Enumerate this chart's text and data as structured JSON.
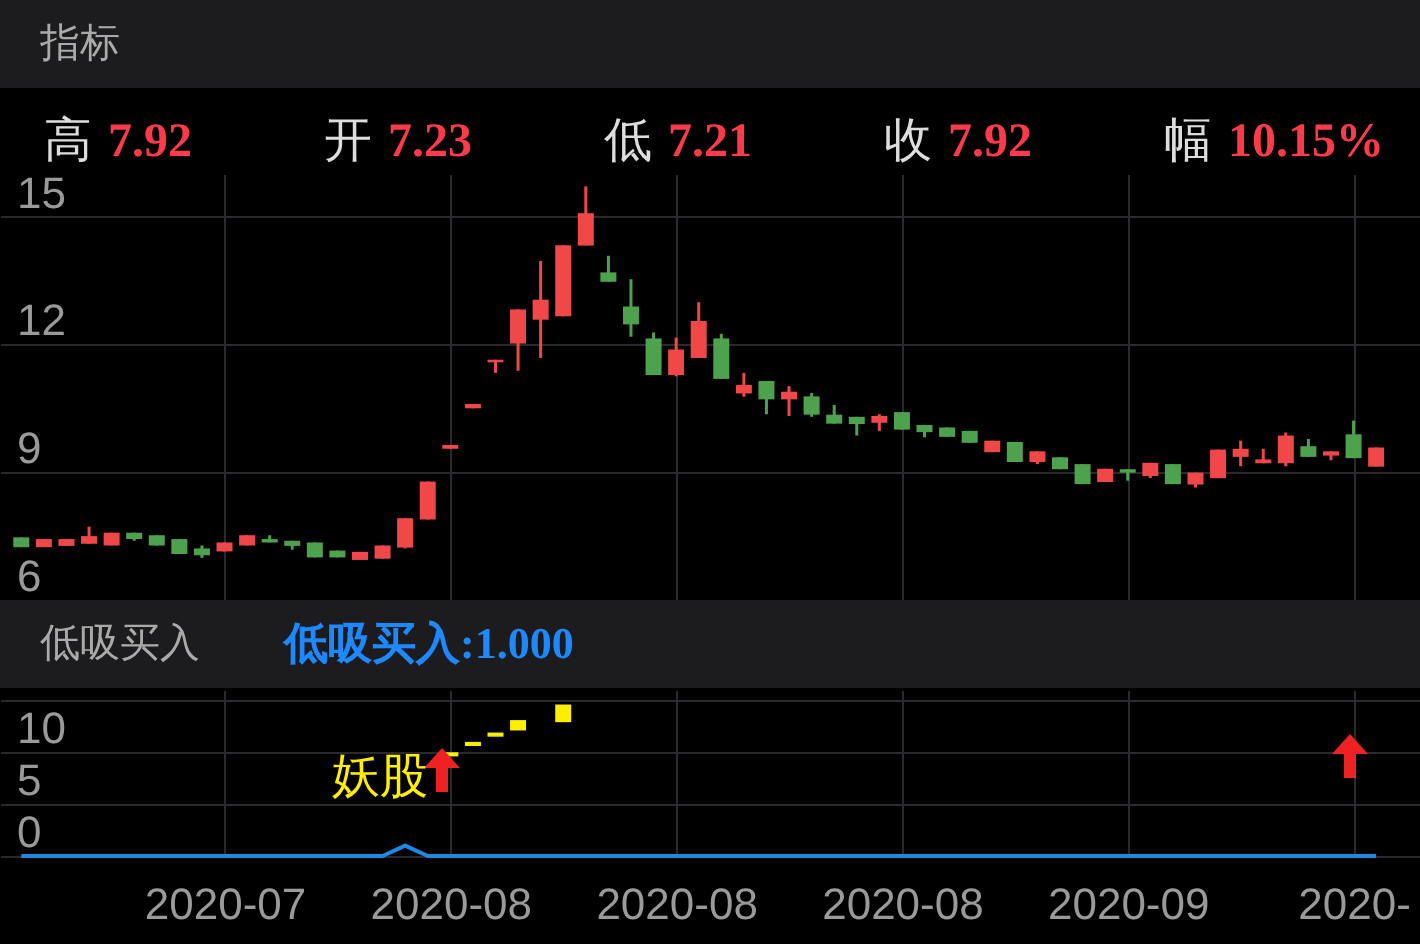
{
  "chart_data": [
    {
      "type": "candlestick",
      "title": "指标",
      "annotations": [
        "高",
        "7.92",
        "开",
        "7.23",
        "低",
        "7.21",
        "收",
        "7.92",
        "幅",
        "10.15%"
      ],
      "categories": [
        null,
        null,
        null,
        null,
        null,
        null,
        null,
        null,
        null,
        null,
        null,
        null,
        null,
        null,
        null,
        null,
        null,
        null,
        null,
        null,
        null,
        null,
        null,
        null,
        null,
        null,
        null,
        null,
        null,
        null,
        null,
        null,
        null,
        null,
        null,
        null,
        null,
        null,
        null,
        null,
        null,
        null,
        null,
        null,
        null,
        null,
        null,
        null,
        null,
        null,
        null,
        null,
        null,
        null,
        null,
        null,
        null,
        null,
        null,
        null,
        null
      ],
      "ohlc": [
        [
          7.47,
          7.47,
          7.24,
          7.24
        ],
        [
          7.24,
          7.43,
          7.24,
          7.43
        ],
        [
          7.27,
          7.43,
          7.27,
          7.43
        ],
        [
          7.32,
          7.72,
          7.32,
          7.5
        ],
        [
          7.28,
          7.58,
          7.28,
          7.58
        ],
        [
          7.58,
          7.58,
          7.39,
          7.43
        ],
        [
          7.52,
          7.52,
          7.28,
          7.28
        ],
        [
          7.43,
          7.43,
          7.08,
          7.08
        ],
        [
          7.21,
          7.28,
          6.99,
          7.05
        ],
        [
          7.14,
          7.35,
          7.14,
          7.35
        ],
        [
          7.28,
          7.52,
          7.28,
          7.52
        ],
        [
          7.43,
          7.52,
          7.35,
          7.35
        ],
        [
          7.39,
          7.39,
          7.18,
          7.27
        ],
        [
          7.35,
          7.35,
          7.0,
          7.0
        ],
        [
          7.16,
          7.16,
          7.0,
          7.0
        ],
        [
          6.94,
          7.13,
          6.94,
          7.13
        ],
        [
          6.97,
          7.28,
          6.97,
          7.28
        ],
        [
          7.23,
          7.92,
          7.21,
          7.92
        ],
        [
          7.89,
          8.78,
          7.89,
          8.78
        ],
        [
          9.55,
          9.64,
          9.55,
          9.64
        ],
        [
          10.5,
          10.6,
          10.5,
          10.6
        ],
        [
          11.58,
          11.64,
          11.33,
          11.64
        ],
        [
          12.02,
          12.82,
          11.38,
          12.82
        ],
        [
          12.58,
          13.96,
          11.68,
          13.05
        ],
        [
          12.66,
          14.33,
          12.66,
          14.33
        ],
        [
          14.32,
          15.71,
          14.32,
          15.08
        ],
        [
          13.69,
          14.08,
          13.47,
          13.47
        ],
        [
          12.89,
          13.53,
          12.18,
          12.47
        ],
        [
          12.14,
          12.28,
          11.28,
          11.28
        ],
        [
          11.28,
          12.16,
          11.25,
          11.88
        ],
        [
          11.68,
          12.99,
          11.68,
          12.55
        ],
        [
          12.14,
          12.25,
          11.19,
          11.19
        ],
        [
          10.85,
          11.33,
          10.77,
          11.05
        ],
        [
          11.14,
          11.14,
          10.36,
          10.71
        ],
        [
          10.71,
          11.02,
          10.32,
          10.89
        ],
        [
          10.78,
          10.86,
          10.3,
          10.35
        ],
        [
          10.35,
          10.58,
          10.14,
          10.14
        ],
        [
          10.3,
          10.3,
          9.86,
          10.13
        ],
        [
          10.16,
          10.36,
          9.97,
          10.32
        ],
        [
          10.41,
          10.41,
          10.0,
          10.0
        ],
        [
          10.11,
          10.11,
          9.82,
          9.94
        ],
        [
          10.05,
          10.05,
          9.83,
          9.83
        ],
        [
          9.97,
          9.97,
          9.69,
          9.69
        ],
        [
          9.47,
          9.74,
          9.47,
          9.74
        ],
        [
          9.71,
          9.71,
          9.24,
          9.24
        ],
        [
          9.24,
          9.49,
          9.19,
          9.49
        ],
        [
          9.35,
          9.35,
          9.07,
          9.07
        ],
        [
          9.19,
          9.19,
          8.72,
          8.72
        ],
        [
          8.77,
          9.08,
          8.77,
          9.08
        ],
        [
          9.07,
          9.07,
          8.8,
          8.99
        ],
        [
          8.91,
          9.22,
          8.86,
          9.22
        ],
        [
          9.19,
          9.19,
          8.72,
          8.72
        ],
        [
          8.71,
          8.99,
          8.64,
          8.99
        ],
        [
          8.86,
          9.53,
          8.86,
          9.53
        ],
        [
          9.36,
          9.74,
          9.14,
          9.55
        ],
        [
          9.21,
          9.55,
          9.21,
          9.3
        ],
        [
          9.21,
          9.93,
          9.14,
          9.86
        ],
        [
          9.61,
          9.78,
          9.36,
          9.36
        ],
        [
          9.39,
          9.49,
          9.28,
          9.49
        ],
        [
          9.89,
          10.21,
          9.33,
          9.33
        ],
        [
          9.13,
          9.58,
          9.13,
          9.58
        ]
      ],
      "colors": [
        "#4ea24e",
        "#f04848",
        "#f04848",
        "#f04848",
        "#f04848",
        "#4ea24e",
        "#4ea24e",
        "#4ea24e",
        "#4ea24e",
        "#f04848",
        "#f04848",
        "#4ea24e",
        "#4ea24e",
        "#4ea24e",
        "#4ea24e",
        "#f04848",
        "#f04848",
        "#f04848",
        "#f04848",
        "#f04848",
        "#f04848",
        "#f04848",
        "#f04848",
        "#f04848",
        "#f04848",
        "#f04848",
        "#4ea24e",
        "#4ea24e",
        "#4ea24e",
        "#f04848",
        "#f04848",
        "#4ea24e",
        "#f04848",
        "#4ea24e",
        "#f04848",
        "#4ea24e",
        "#4ea24e",
        "#4ea24e",
        "#f04848",
        "#4ea24e",
        "#4ea24e",
        "#4ea24e",
        "#4ea24e",
        "#f04848",
        "#4ea24e",
        "#f04848",
        "#4ea24e",
        "#4ea24e",
        "#f04848",
        "#4ea24e",
        "#f04848",
        "#4ea24e",
        "#f04848",
        "#f04848",
        "#f04848",
        "#f04848",
        "#f04848",
        "#4ea24e",
        "#f04848",
        "#4ea24e",
        "#f04848"
      ],
      "ylim": [
        6,
        16
      ],
      "yticks": [
        6,
        9,
        12,
        15
      ],
      "grid": true,
      "tick_labels": "y"
    },
    {
      "type": "bar",
      "title": "低吸买入",
      "annotations": [
        "低吸买入:1.000",
        "妖股"
      ],
      "categories": [
        null,
        null,
        null,
        null,
        null,
        null,
        null,
        null,
        null,
        "2020-07",
        null,
        null,
        null,
        null,
        null,
        null,
        null,
        null,
        null,
        "2020-08",
        null,
        null,
        null,
        null,
        null,
        null,
        null,
        null,
        null,
        "2020-08",
        null,
        null,
        null,
        null,
        null,
        null,
        null,
        null,
        null,
        "2020-08",
        null,
        null,
        null,
        null,
        null,
        null,
        null,
        null,
        null,
        "2020-09",
        null,
        null,
        null,
        null,
        null,
        null,
        null,
        null,
        null,
        "2020-",
        null
      ],
      "series": [
        {
          "type": "bar",
          "color": "#ffee00",
          "base": [
            null,
            null,
            null,
            null,
            null,
            null,
            null,
            null,
            null,
            null,
            null,
            null,
            null,
            null,
            null,
            null,
            null,
            null,
            null,
            9.6,
            10.6,
            11.5,
            12.1,
            null,
            12.9,
            null,
            null,
            null,
            null,
            null,
            null,
            null,
            null,
            null,
            null,
            null,
            null,
            null,
            null,
            null,
            null,
            null,
            null,
            null,
            null,
            null,
            null,
            null,
            null,
            null,
            null,
            null,
            null,
            null,
            null,
            null,
            null,
            null,
            null,
            null,
            null
          ],
          "values": [
            null,
            null,
            null,
            null,
            null,
            null,
            null,
            null,
            null,
            null,
            null,
            null,
            null,
            null,
            null,
            null,
            null,
            null,
            null,
            0.4,
            0.4,
            0.4,
            1.0,
            null,
            1.7,
            null,
            null,
            null,
            null,
            null,
            null,
            null,
            null,
            null,
            null,
            null,
            null,
            null,
            null,
            null,
            null,
            null,
            null,
            null,
            null,
            null,
            null,
            null,
            null,
            null,
            null,
            null,
            null,
            null,
            null,
            null,
            null,
            null,
            null,
            null,
            null
          ]
        },
        {
          "type": "line",
          "color": "#1e88e5",
          "values": [
            0,
            0,
            0,
            0,
            0,
            0,
            0,
            0,
            0,
            0,
            0,
            0,
            0,
            0,
            0,
            0,
            0,
            1,
            0,
            0,
            0,
            0,
            0,
            0,
            0,
            0,
            0,
            0,
            0,
            0,
            0,
            0,
            0,
            0,
            0,
            0,
            0,
            0,
            0,
            0,
            0,
            0,
            0,
            0,
            0,
            0,
            0,
            0,
            0,
            0,
            0,
            0,
            0,
            0,
            0,
            0,
            0,
            0,
            0,
            0,
            0
          ]
        }
      ],
      "ylim": [
        0,
        16
      ],
      "yticks": [
        0,
        5,
        10,
        {
          "value": 15,
          "label": null
        }
      ],
      "grid": true
    }
  ]
}
